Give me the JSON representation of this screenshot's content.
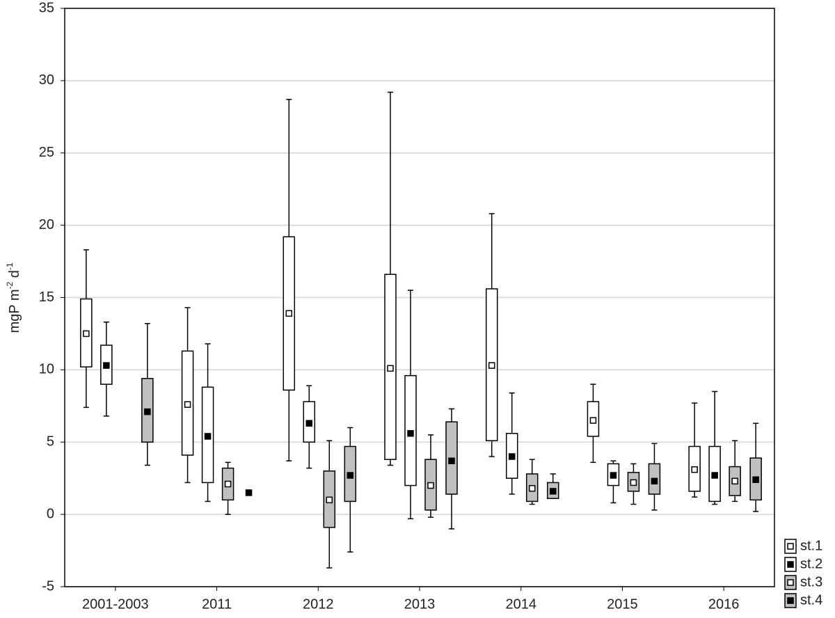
{
  "chart_data": {
    "type": "box",
    "ylabel_parts": [
      "mgP m",
      "-2",
      " d",
      "-1"
    ],
    "categories": [
      "2001-2003",
      "2011",
      "2012",
      "2013",
      "2014",
      "2015",
      "2016"
    ],
    "ylim": [
      -5,
      35
    ],
    "yticks": [
      -5,
      0,
      5,
      10,
      15,
      20,
      25,
      30,
      35
    ],
    "grid": true,
    "series": [
      {
        "name": "st.1",
        "box_color": "#ffffff",
        "marker_color": "#ffffff",
        "values": [
          12.5,
          7.6,
          13.9,
          10.1,
          10.3,
          6.5,
          3.1
        ],
        "box_low": [
          10.2,
          4.1,
          8.6,
          3.8,
          5.1,
          5.4,
          1.6
        ],
        "box_high": [
          14.9,
          11.3,
          19.2,
          16.6,
          15.6,
          7.8,
          4.7
        ],
        "whisker_low": [
          7.4,
          2.2,
          3.7,
          3.4,
          4.0,
          3.6,
          1.2
        ],
        "whisker_high": [
          18.3,
          14.3,
          28.7,
          29.2,
          20.8,
          9.0,
          7.7
        ]
      },
      {
        "name": "st.2",
        "box_color": "#ffffff",
        "marker_color": "#000000",
        "values": [
          10.3,
          5.4,
          6.3,
          5.6,
          4.0,
          2.7,
          2.7
        ],
        "box_low": [
          9.0,
          2.2,
          5.0,
          2.0,
          2.5,
          2.0,
          0.9
        ],
        "box_high": [
          11.7,
          8.8,
          7.8,
          9.6,
          5.6,
          3.5,
          4.7
        ],
        "whisker_low": [
          6.8,
          0.9,
          3.2,
          -0.3,
          1.4,
          0.8,
          0.7
        ],
        "whisker_high": [
          13.3,
          11.8,
          8.9,
          15.5,
          8.4,
          3.7,
          8.5
        ]
      },
      {
        "name": "st.3",
        "box_color": "#c0c0c0",
        "marker_color": "#ffffff",
        "values": [
          null,
          2.1,
          1.0,
          2.0,
          1.8,
          2.2,
          2.3
        ],
        "box_low": [
          null,
          1.0,
          -0.9,
          0.3,
          0.9,
          1.6,
          1.3
        ],
        "box_high": [
          null,
          3.2,
          3.0,
          3.8,
          2.8,
          2.9,
          3.3
        ],
        "whisker_low": [
          null,
          0.0,
          -3.7,
          -0.2,
          0.7,
          0.7,
          0.9
        ],
        "whisker_high": [
          null,
          3.6,
          5.1,
          5.5,
          3.8,
          3.5,
          5.1
        ]
      },
      {
        "name": "st.4",
        "box_color": "#c0c0c0",
        "marker_color": "#000000",
        "values": [
          7.1,
          1.5,
          2.7,
          3.7,
          1.6,
          2.3,
          2.4
        ],
        "box_low": [
          5.0,
          null,
          0.9,
          1.4,
          1.1,
          1.4,
          1.0
        ],
        "box_high": [
          9.4,
          null,
          4.7,
          6.4,
          2.2,
          3.5,
          3.9
        ],
        "whisker_low": [
          3.4,
          null,
          -2.6,
          -1.0,
          1.1,
          0.3,
          0.2
        ],
        "whisker_high": [
          13.2,
          null,
          6.0,
          7.3,
          2.8,
          4.9,
          6.3
        ]
      }
    ]
  }
}
